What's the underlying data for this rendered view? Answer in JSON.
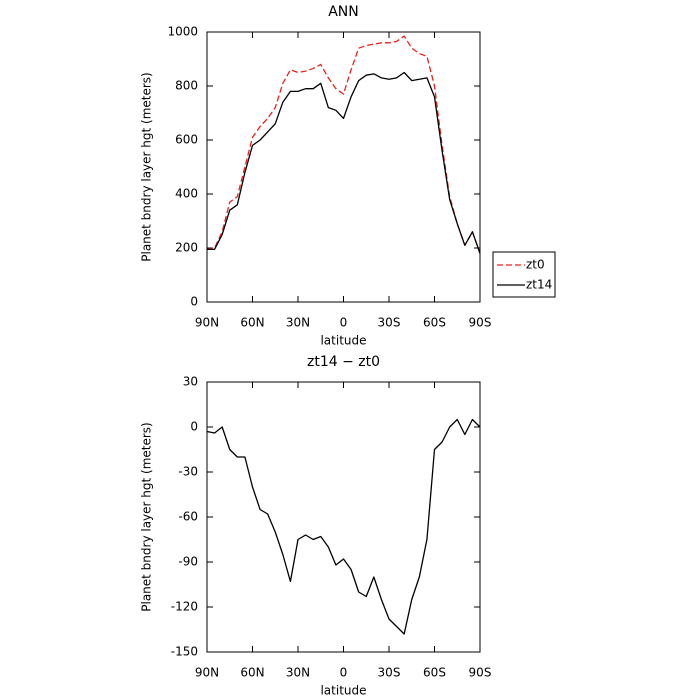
{
  "chart_data": [
    {
      "type": "line",
      "title": "ANN",
      "xlabel": "latitude",
      "ylabel": "Planet bndry layer hgt (meters)",
      "x": [
        90,
        85,
        80,
        75,
        70,
        65,
        60,
        55,
        50,
        45,
        40,
        35,
        30,
        25,
        20,
        15,
        10,
        5,
        0,
        -5,
        -10,
        -15,
        -20,
        -25,
        -30,
        -35,
        -40,
        -45,
        -50,
        -55,
        -60,
        -65,
        -70,
        -75,
        -80,
        -85,
        -90
      ],
      "series": [
        {
          "name": "zt0",
          "color": "#e8201a",
          "dash": true,
          "values": [
            195,
            200,
            260,
            370,
            390,
            500,
            610,
            650,
            680,
            720,
            810,
            860,
            850,
            855,
            865,
            880,
            830,
            790,
            770,
            860,
            940,
            950,
            955,
            960,
            960,
            965,
            985,
            940,
            920,
            910,
            800,
            580,
            390,
            290,
            210,
            260,
            180
          ]
        },
        {
          "name": "zt14",
          "color": "#000000",
          "dash": false,
          "values": [
            195,
            195,
            250,
            340,
            360,
            480,
            580,
            600,
            630,
            660,
            740,
            780,
            780,
            790,
            790,
            810,
            720,
            710,
            680,
            760,
            820,
            840,
            845,
            830,
            825,
            830,
            850,
            820,
            825,
            830,
            760,
            560,
            380,
            290,
            210,
            260,
            180
          ]
        }
      ],
      "xlim": [
        90,
        -90
      ],
      "xticks": [
        {
          "value": 90,
          "label": "90N"
        },
        {
          "value": 60,
          "label": "60N"
        },
        {
          "value": 30,
          "label": "30N"
        },
        0,
        {
          "value": -30,
          "label": "30S"
        },
        {
          "value": -60,
          "label": "60S"
        },
        {
          "value": -90,
          "label": "90S"
        }
      ],
      "ylim": [
        0,
        1000
      ],
      "yticks": [
        0,
        200,
        400,
        600,
        800,
        1000
      ],
      "legend": "right"
    },
    {
      "type": "line",
      "title": "zt14 − zt0",
      "xlabel": "latitude",
      "ylabel": "Planet bndry layer hgt (meters)",
      "x": [
        90,
        85,
        80,
        75,
        70,
        65,
        60,
        55,
        50,
        45,
        40,
        35,
        30,
        25,
        20,
        15,
        10,
        5,
        0,
        -5,
        -10,
        -15,
        -20,
        -25,
        -30,
        -35,
        -40,
        -45,
        -50,
        -55,
        -60,
        -65,
        -70,
        -75,
        -80,
        -85,
        -90
      ],
      "series": [
        {
          "color": "#000000",
          "dash": false,
          "values": [
            -3,
            -4,
            0,
            -15,
            -20,
            -20,
            -40,
            -55,
            -58,
            -70,
            -85,
            -103,
            -75,
            -72,
            -75,
            -73,
            -80,
            -92,
            -88,
            -95,
            -110,
            -113,
            -100,
            -115,
            -128,
            -133,
            -138,
            -115,
            -100,
            -75,
            -15,
            -10,
            0,
            5,
            -5,
            5,
            0
          ]
        }
      ],
      "xlim": [
        90,
        -90
      ],
      "xticks": [
        {
          "value": 90,
          "label": "90N"
        },
        {
          "value": 60,
          "label": "60N"
        },
        {
          "value": 30,
          "label": "30N"
        },
        0,
        {
          "value": -30,
          "label": "30S"
        },
        {
          "value": -60,
          "label": "60S"
        },
        {
          "value": -90,
          "label": "90S"
        }
      ],
      "ylim": [
        -150,
        30
      ],
      "yticks": [
        -150,
        -120,
        -90,
        -60,
        -30,
        0,
        30
      ]
    }
  ]
}
